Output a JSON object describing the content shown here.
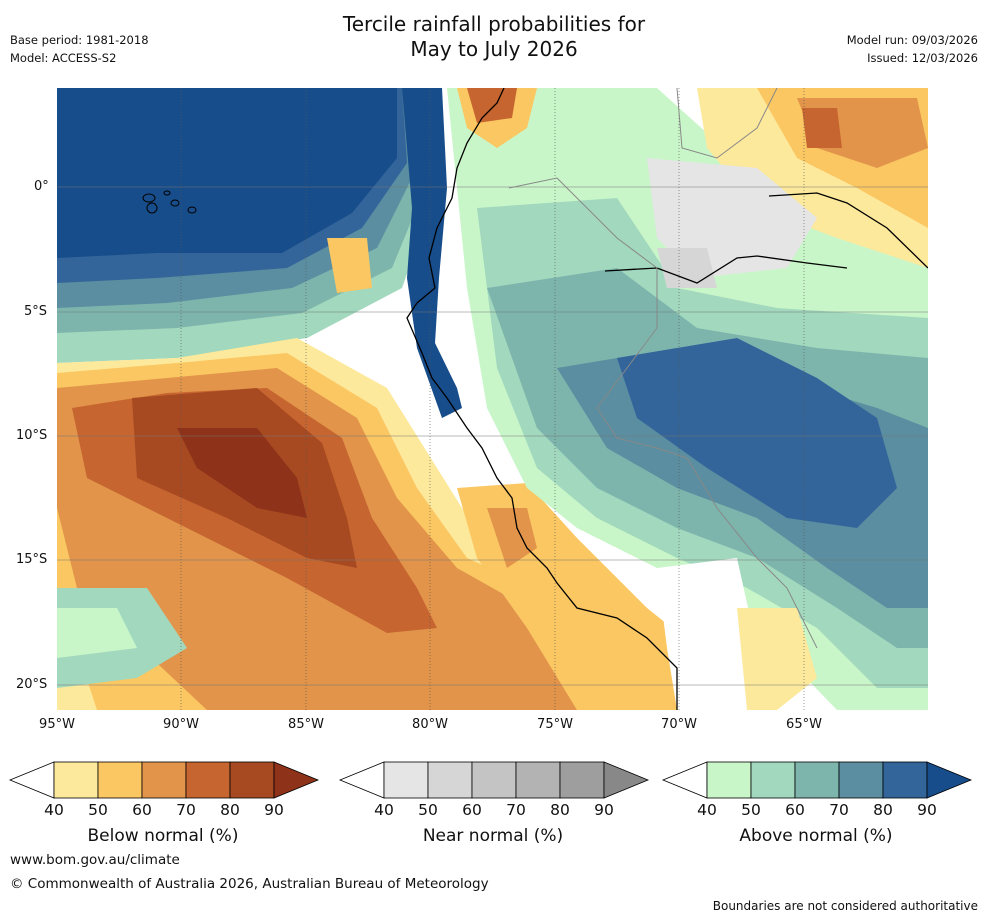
{
  "title": {
    "line1": "Tercile rainfall probabilities for",
    "line2": "May to July 2026"
  },
  "meta": {
    "base_period": "Base period: 1981-2018",
    "model": "Model: ACCESS-S2",
    "model_run": "Model run: 09/03/2026",
    "issued": "Issued: 12/03/2026"
  },
  "axes": {
    "lat_labels": [
      "0°",
      "5°S",
      "10°S",
      "15°S",
      "20°S"
    ],
    "lon_labels": [
      "95°W",
      "90°W",
      "85°W",
      "80°W",
      "75°W",
      "70°W",
      "65°W"
    ]
  },
  "colorbars": [
    {
      "label": "Below normal (%)",
      "ticks": [
        "40",
        "50",
        "60",
        "70",
        "80",
        "90"
      ],
      "colors": [
        "#ffffff",
        "#fde99c",
        "#fbc762",
        "#e1944a",
        "#c6652f",
        "#a74a22",
        "#8e3219"
      ]
    },
    {
      "label": "Near normal (%)",
      "ticks": [
        "40",
        "50",
        "60",
        "70",
        "80",
        "90"
      ],
      "colors": [
        "#ffffff",
        "#e5e5e5",
        "#d6d6d6",
        "#c4c4c4",
        "#b3b3b3",
        "#9e9e9e",
        "#888888"
      ]
    },
    {
      "label": "Above normal (%)",
      "ticks": [
        "40",
        "50",
        "60",
        "70",
        "80",
        "90"
      ],
      "colors": [
        "#ffffff",
        "#c8f6c8",
        "#a2d8bd",
        "#7db5ad",
        "#5a8ea0",
        "#33659a",
        "#174d8a"
      ]
    }
  ],
  "footer": {
    "url": "www.bom.gov.au/climate",
    "copyright": "© Commonwealth of Australia 2026, Australian Bureau of Meteorology",
    "disclaimer": "Boundaries are not considered authoritative"
  }
}
